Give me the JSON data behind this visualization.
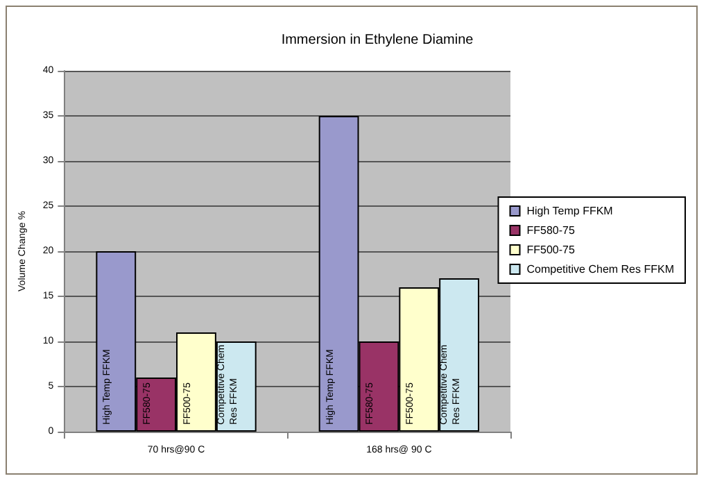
{
  "chart_data": {
    "type": "bar",
    "title": "Immersion in Ethylene Diamine",
    "ylabel": "Volume Change %",
    "categories": [
      "70 hrs@90 C",
      "168 hrs@ 90 C"
    ],
    "series": [
      {
        "name": "High Temp FFKM",
        "color": "#9999cc",
        "values": [
          20,
          35
        ]
      },
      {
        "name": "FF580-75",
        "color": "#993366",
        "values": [
          6,
          10
        ]
      },
      {
        "name": "FF500-75",
        "color": "#ffffcc",
        "values": [
          11,
          16
        ]
      },
      {
        "name": "Competitive Chem Res FFKM",
        "color": "#cce8f0",
        "values": [
          10,
          17
        ]
      }
    ],
    "ylim": [
      0,
      40
    ],
    "yticks": [
      0,
      5,
      10,
      15,
      20,
      25,
      30,
      35,
      40
    ],
    "grid": "y",
    "legend": "right"
  }
}
